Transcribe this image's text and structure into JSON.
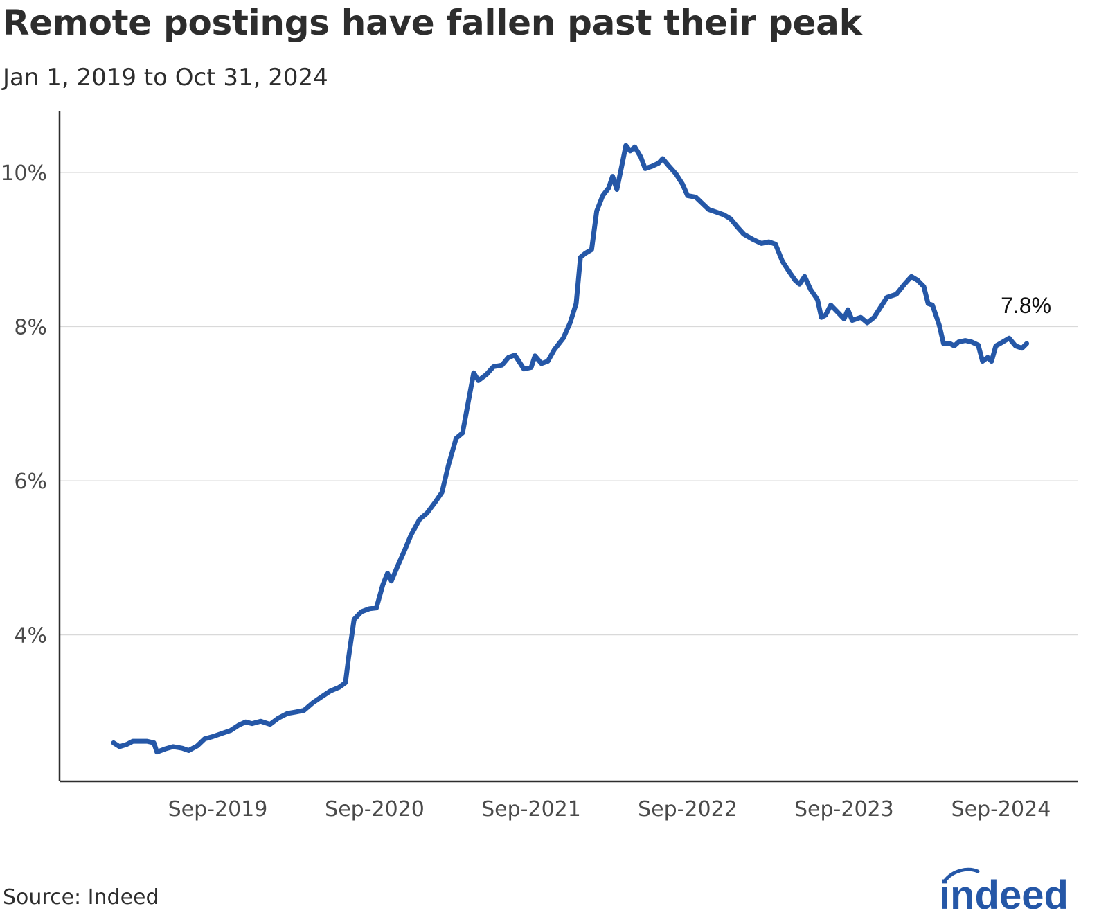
{
  "title": "Remote postings have fallen past their peak",
  "subtitle": "Jan 1, 2019 to Oct 31, 2024",
  "source": "Source: Indeed",
  "logo_text": "indeed",
  "colors": {
    "line": "#2557a7",
    "grid": "#d9d9d9",
    "axis": "#2d2d2d",
    "brand": "#2557a7"
  },
  "chart_data": {
    "type": "line",
    "title": "Remote postings have fallen past their peak",
    "subtitle": "Jan 1, 2019 to Oct 31, 2024",
    "xlabel": "",
    "ylabel": "",
    "x_range": [
      "2019-01-01",
      "2024-10-31"
    ],
    "ylim": [
      2.1,
      10.8
    ],
    "y_ticks": [
      4,
      6,
      8,
      10
    ],
    "y_tick_labels": [
      "4%",
      "6%",
      "8%",
      "10%"
    ],
    "x_ticks": [
      "2019-09-01",
      "2020-09-01",
      "2021-09-01",
      "2022-09-01",
      "2023-09-01",
      "2024-09-01"
    ],
    "x_tick_labels": [
      "Sep-2019",
      "Sep-2020",
      "Sep-2021",
      "Sep-2022",
      "Sep-2023",
      "Sep-2024"
    ],
    "grid": true,
    "annotation": {
      "text": "7.8%",
      "x": "2024-10-31",
      "y": 7.8
    },
    "series": [
      {
        "values": [
          [
            "2019-01-01",
            2.6
          ],
          [
            "2019-01-15",
            2.55
          ],
          [
            "2019-02-01",
            2.58
          ],
          [
            "2019-02-15",
            2.62
          ],
          [
            "2019-03-01",
            2.62
          ],
          [
            "2019-03-20",
            2.62
          ],
          [
            "2019-04-05",
            2.6
          ],
          [
            "2019-04-12",
            2.48
          ],
          [
            "2019-05-01",
            2.52
          ],
          [
            "2019-05-20",
            2.55
          ],
          [
            "2019-06-10",
            2.53
          ],
          [
            "2019-06-25",
            2.5
          ],
          [
            "2019-07-15",
            2.56
          ],
          [
            "2019-08-01",
            2.65
          ],
          [
            "2019-08-20",
            2.68
          ],
          [
            "2019-09-10",
            2.72
          ],
          [
            "2019-10-01",
            2.76
          ],
          [
            "2019-10-20",
            2.83
          ],
          [
            "2019-11-05",
            2.87
          ],
          [
            "2019-11-20",
            2.85
          ],
          [
            "2019-12-10",
            2.88
          ],
          [
            "2020-01-01",
            2.84
          ],
          [
            "2020-01-20",
            2.92
          ],
          [
            "2020-02-10",
            2.98
          ],
          [
            "2020-03-01",
            3.0
          ],
          [
            "2020-03-20",
            3.02
          ],
          [
            "2020-04-10",
            3.12
          ],
          [
            "2020-05-01",
            3.2
          ],
          [
            "2020-05-20",
            3.27
          ],
          [
            "2020-06-10",
            3.32
          ],
          [
            "2020-06-25",
            3.38
          ],
          [
            "2020-07-02",
            3.7
          ],
          [
            "2020-07-15",
            4.2
          ],
          [
            "2020-08-01",
            4.3
          ],
          [
            "2020-08-20",
            4.34
          ],
          [
            "2020-09-05",
            4.35
          ],
          [
            "2020-09-20",
            4.65
          ],
          [
            "2020-10-01",
            4.8
          ],
          [
            "2020-10-10",
            4.7
          ],
          [
            "2020-10-25",
            4.9
          ],
          [
            "2020-11-10",
            5.1
          ],
          [
            "2020-11-25",
            5.3
          ],
          [
            "2020-12-15",
            5.5
          ],
          [
            "2021-01-01",
            5.58
          ],
          [
            "2021-01-20",
            5.72
          ],
          [
            "2021-02-05",
            5.85
          ],
          [
            "2021-02-20",
            6.2
          ],
          [
            "2021-03-10",
            6.55
          ],
          [
            "2021-03-25",
            6.62
          ],
          [
            "2021-04-10",
            7.1
          ],
          [
            "2021-04-20",
            7.4
          ],
          [
            "2021-05-01",
            7.3
          ],
          [
            "2021-05-20",
            7.38
          ],
          [
            "2021-06-05",
            7.48
          ],
          [
            "2021-06-25",
            7.5
          ],
          [
            "2021-07-10",
            7.6
          ],
          [
            "2021-07-25",
            7.63
          ],
          [
            "2021-08-15",
            7.45
          ],
          [
            "2021-09-01",
            7.47
          ],
          [
            "2021-09-10",
            7.62
          ],
          [
            "2021-09-25",
            7.52
          ],
          [
            "2021-10-10",
            7.55
          ],
          [
            "2021-10-25",
            7.7
          ],
          [
            "2021-11-15",
            7.85
          ],
          [
            "2021-12-01",
            8.05
          ],
          [
            "2021-12-15",
            8.3
          ],
          [
            "2021-12-25",
            8.9
          ],
          [
            "2022-01-05",
            8.95
          ],
          [
            "2022-01-20",
            9.0
          ],
          [
            "2022-02-01",
            9.5
          ],
          [
            "2022-02-15",
            9.7
          ],
          [
            "2022-03-01",
            9.8
          ],
          [
            "2022-03-10",
            9.95
          ],
          [
            "2022-03-20",
            9.78
          ],
          [
            "2022-04-01",
            10.1
          ],
          [
            "2022-04-10",
            10.35
          ],
          [
            "2022-04-20",
            10.28
          ],
          [
            "2022-05-01",
            10.33
          ],
          [
            "2022-05-15",
            10.2
          ],
          [
            "2022-05-25",
            10.05
          ],
          [
            "2022-06-10",
            10.08
          ],
          [
            "2022-06-25",
            10.12
          ],
          [
            "2022-07-05",
            10.18
          ],
          [
            "2022-07-20",
            10.08
          ],
          [
            "2022-08-05",
            9.98
          ],
          [
            "2022-08-20",
            9.85
          ],
          [
            "2022-09-01",
            9.7
          ],
          [
            "2022-09-20",
            9.68
          ],
          [
            "2022-10-05",
            9.6
          ],
          [
            "2022-10-20",
            9.52
          ],
          [
            "2022-11-10",
            9.48
          ],
          [
            "2022-11-25",
            9.45
          ],
          [
            "2022-12-10",
            9.4
          ],
          [
            "2022-12-25",
            9.3
          ],
          [
            "2023-01-10",
            9.2
          ],
          [
            "2023-02-01",
            9.13
          ],
          [
            "2023-02-20",
            9.08
          ],
          [
            "2023-03-10",
            9.1
          ],
          [
            "2023-03-25",
            9.07
          ],
          [
            "2023-04-10",
            8.85
          ],
          [
            "2023-04-25",
            8.72
          ],
          [
            "2023-05-10",
            8.6
          ],
          [
            "2023-05-20",
            8.55
          ],
          [
            "2023-06-01",
            8.65
          ],
          [
            "2023-06-15",
            8.48
          ],
          [
            "2023-07-01",
            8.35
          ],
          [
            "2023-07-10",
            8.12
          ],
          [
            "2023-07-20",
            8.15
          ],
          [
            "2023-08-01",
            8.28
          ],
          [
            "2023-08-15",
            8.2
          ],
          [
            "2023-09-01",
            8.1
          ],
          [
            "2023-09-10",
            8.22
          ],
          [
            "2023-09-20",
            8.08
          ],
          [
            "2023-10-10",
            8.12
          ],
          [
            "2023-10-25",
            8.05
          ],
          [
            "2023-11-10",
            8.12
          ],
          [
            "2023-11-25",
            8.25
          ],
          [
            "2023-12-10",
            8.38
          ],
          [
            "2024-01-01",
            8.42
          ],
          [
            "2024-01-20",
            8.55
          ],
          [
            "2024-02-05",
            8.65
          ],
          [
            "2024-02-20",
            8.6
          ],
          [
            "2024-03-05",
            8.52
          ],
          [
            "2024-03-15",
            8.3
          ],
          [
            "2024-03-25",
            8.28
          ],
          [
            "2024-04-10",
            8.02
          ],
          [
            "2024-04-20",
            7.78
          ],
          [
            "2024-05-05",
            7.78
          ],
          [
            "2024-05-15",
            7.75
          ],
          [
            "2024-05-25",
            7.8
          ],
          [
            "2024-06-10",
            7.82
          ],
          [
            "2024-06-25",
            7.8
          ],
          [
            "2024-07-10",
            7.76
          ],
          [
            "2024-07-20",
            7.55
          ],
          [
            "2024-08-01",
            7.6
          ],
          [
            "2024-08-10",
            7.55
          ],
          [
            "2024-08-20",
            7.75
          ],
          [
            "2024-09-05",
            7.8
          ],
          [
            "2024-09-20",
            7.85
          ],
          [
            "2024-10-05",
            7.75
          ],
          [
            "2024-10-20",
            7.72
          ],
          [
            "2024-10-31",
            7.78
          ]
        ]
      }
    ]
  }
}
